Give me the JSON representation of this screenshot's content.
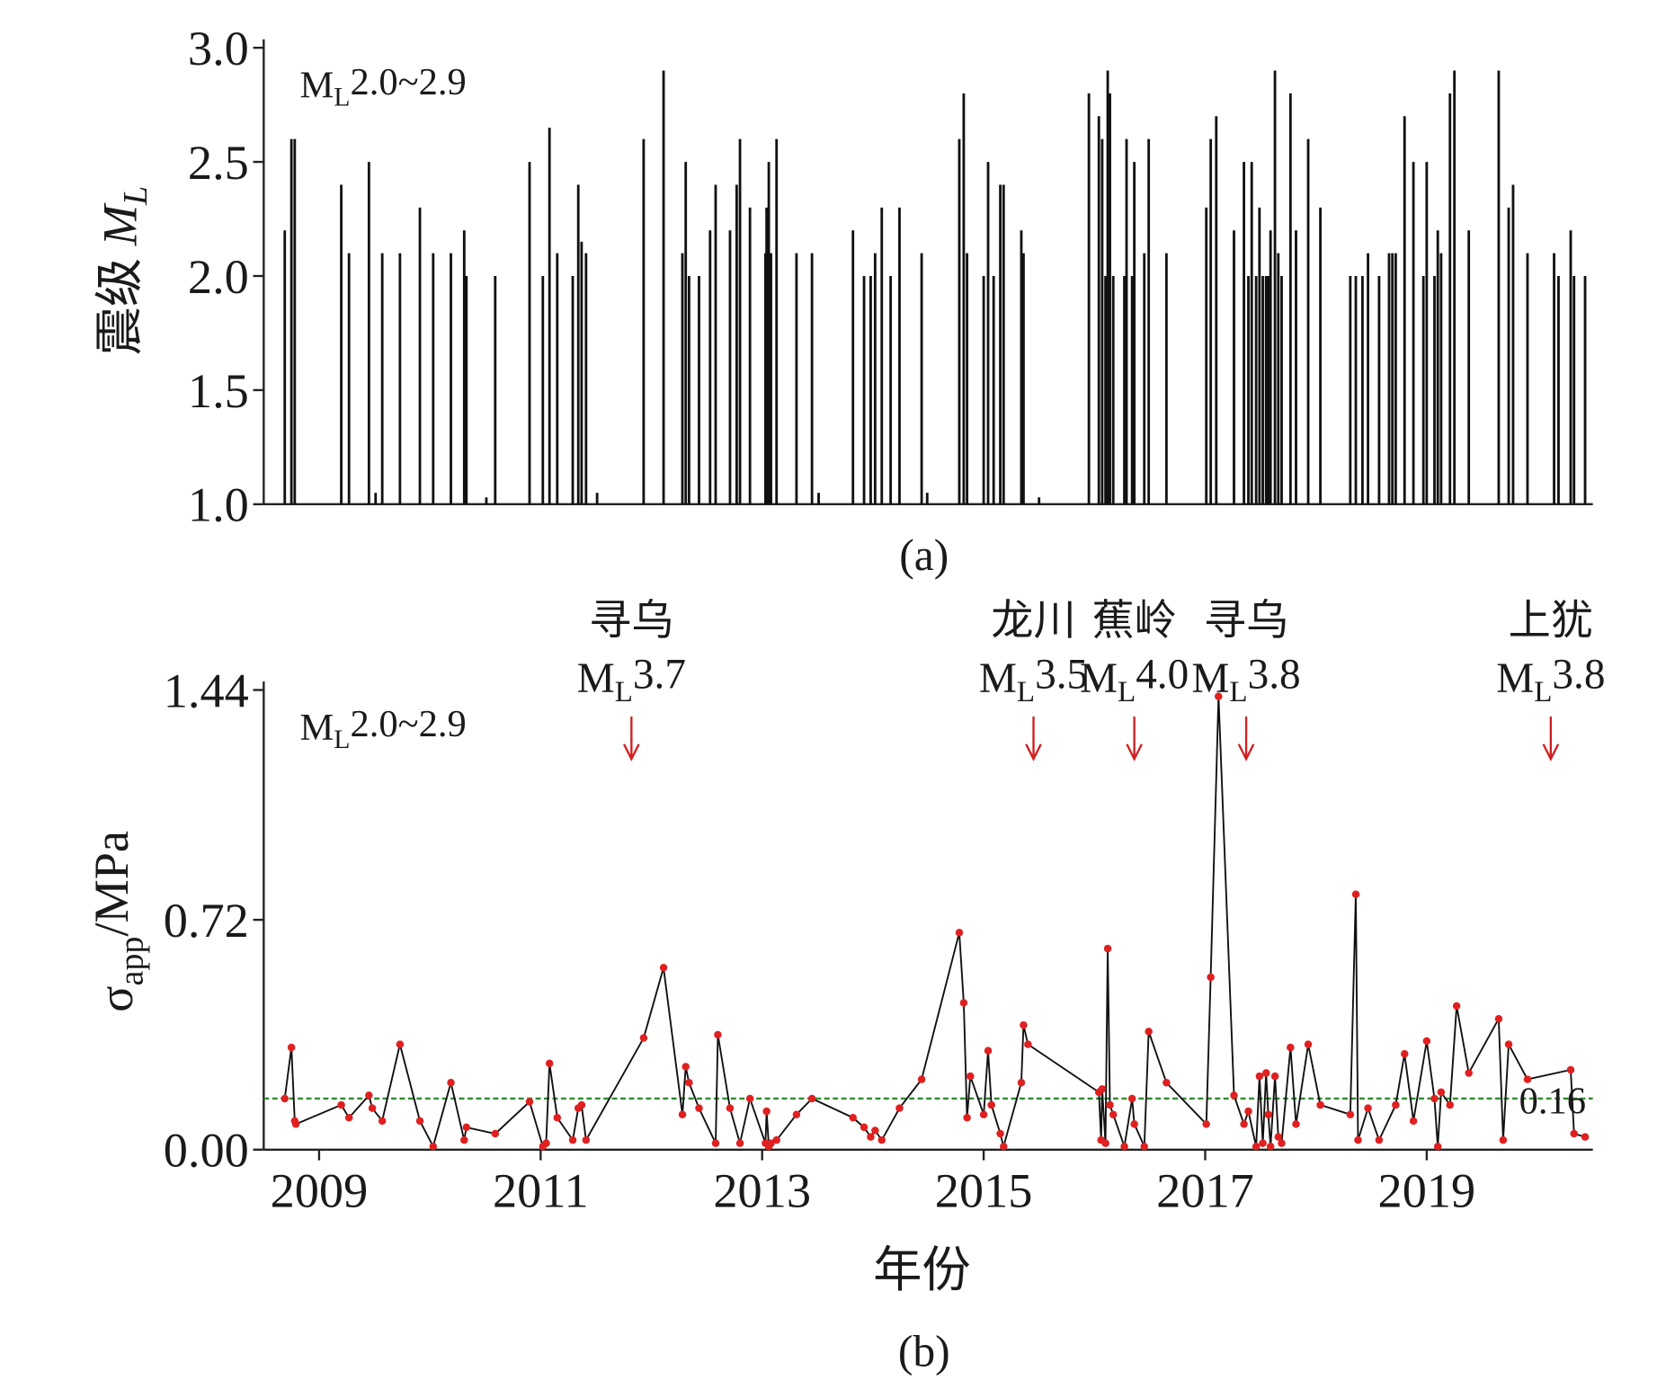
{
  "chart_data": [
    {
      "type": "bar",
      "annotation_text": [
        {
          "text": "M"
        },
        {
          "text": "L",
          "sub": true
        },
        {
          "text": "2.0~2.9"
        }
      ],
      "ylabel": [
        {
          "text": "震级 "
        },
        {
          "text": "M",
          "italic": true
        },
        {
          "text": "L",
          "sub": true,
          "italic": true
        }
      ],
      "panel_label": "(a)",
      "color": "#111111",
      "xlim": [
        2008.5,
        2020.5
      ],
      "ylim": [
        1.0,
        3.0
      ],
      "yticks": [
        {
          "value": 1.0,
          "label": "1.0"
        },
        {
          "value": 1.5,
          "label": "1.5"
        },
        {
          "value": 2.0,
          "label": "2.0"
        },
        {
          "value": 2.5,
          "label": "2.5"
        },
        {
          "value": 3.0,
          "label": "3.0"
        }
      ],
      "x": [
        2008.69,
        2008.75,
        2008.78,
        2009.2,
        2009.27,
        2009.45,
        2009.51,
        2009.57,
        2009.73,
        2009.91,
        2010.03,
        2010.19,
        2010.31,
        2010.33,
        2010.51,
        2010.59,
        2010.9,
        2011.02,
        2011.08,
        2011.15,
        2011.29,
        2011.34,
        2011.37,
        2011.41,
        2011.51,
        2011.93,
        2012.11,
        2012.28,
        2012.31,
        2012.34,
        2012.43,
        2012.53,
        2012.58,
        2012.71,
        2012.77,
        2012.8,
        2012.89,
        2013.03,
        2013.04,
        2013.06,
        2013.08,
        2013.13,
        2013.31,
        2013.45,
        2013.51,
        2013.82,
        2013.92,
        2013.98,
        2014.02,
        2014.08,
        2014.16,
        2014.24,
        2014.44,
        2014.49,
        2014.78,
        2014.82,
        2014.85,
        2015.0,
        2015.04,
        2015.09,
        2015.15,
        2015.18,
        2015.34,
        2015.36,
        2015.5,
        2015.95,
        2016.04,
        2016.07,
        2016.1,
        2016.12,
        2016.14,
        2016.17,
        2016.27,
        2016.29,
        2016.34,
        2016.36,
        2016.45,
        2016.49,
        2016.65,
        2017.01,
        2017.05,
        2017.1,
        2017.26,
        2017.35,
        2017.39,
        2017.42,
        2017.46,
        2017.49,
        2017.52,
        2017.55,
        2017.57,
        2017.59,
        2017.63,
        2017.66,
        2017.69,
        2017.77,
        2017.82,
        2017.93,
        2018.04,
        2018.31,
        2018.36,
        2018.42,
        2018.47,
        2018.57,
        2018.66,
        2018.69,
        2018.72,
        2018.8,
        2018.88,
        2018.97,
        2019.0,
        2019.07,
        2019.1,
        2019.13,
        2019.21,
        2019.25,
        2019.38,
        2019.65,
        2019.74,
        2019.78,
        2019.91,
        2020.15,
        2020.19,
        2020.3,
        2020.33,
        2020.43
      ],
      "values": [
        2.2,
        2.6,
        2.6,
        2.4,
        2.1,
        2.5,
        1.05,
        2.1,
        2.1,
        2.3,
        2.1,
        2.1,
        2.2,
        2.0,
        1.03,
        2.0,
        2.5,
        2.0,
        2.65,
        2.1,
        2.0,
        2.4,
        2.15,
        2.1,
        1.05,
        2.6,
        2.9,
        2.1,
        2.5,
        2.0,
        2.0,
        2.2,
        2.4,
        2.2,
        2.4,
        2.6,
        2.3,
        2.1,
        2.3,
        2.5,
        2.1,
        2.6,
        2.1,
        2.1,
        1.05,
        2.2,
        2.0,
        2.0,
        2.1,
        2.3,
        2.0,
        2.3,
        2.1,
        1.05,
        2.6,
        2.8,
        2.1,
        2.0,
        2.5,
        2.0,
        2.4,
        2.4,
        2.2,
        2.1,
        1.03,
        2.8,
        2.7,
        2.6,
        2.0,
        2.9,
        2.8,
        2.0,
        2.0,
        2.6,
        2.0,
        2.5,
        2.1,
        2.6,
        2.1,
        2.3,
        2.6,
        2.7,
        2.2,
        2.5,
        2.0,
        2.5,
        2.0,
        2.3,
        2.0,
        2.0,
        2.0,
        2.2,
        2.9,
        2.1,
        2.0,
        2.8,
        2.2,
        2.6,
        2.3,
        2.0,
        2.0,
        2.0,
        2.1,
        2.0,
        2.1,
        2.1,
        2.1,
        2.7,
        2.5,
        2.0,
        2.5,
        2.0,
        2.2,
        2.1,
        2.8,
        2.9,
        2.2,
        2.9,
        2.3,
        2.4,
        2.1,
        2.1,
        2.0,
        2.2,
        2.0,
        2.0
      ]
    },
    {
      "type": "line",
      "annotation_text": [
        {
          "text": "M"
        },
        {
          "text": "L",
          "sub": true
        },
        {
          "text": "2.0~2.9"
        }
      ],
      "ylabel": [
        {
          "text": "σ"
        },
        {
          "text": "app",
          "sub": true
        },
        {
          "text": "/MPa"
        }
      ],
      "xlabel": "年份",
      "panel_label": "(b)",
      "color": "#111111",
      "marker_color": "#e02020",
      "xlim": [
        2008.5,
        2020.5
      ],
      "xticks": [
        2009,
        2011,
        2013,
        2015,
        2017,
        2019
      ],
      "ylim": [
        0,
        1.44
      ],
      "yticks": [
        {
          "value": 0,
          "label": "0.00"
        },
        {
          "value": 0.72,
          "label": "0.72"
        },
        {
          "value": 1.44,
          "label": "1.44"
        }
      ],
      "hline": {
        "value": 0.16,
        "label": "0.16",
        "color": "#2e8b2e"
      },
      "events": [
        {
          "x": 2011.82,
          "place": "寻乌",
          "magnitude": [
            {
              "text": "M"
            },
            {
              "text": "L",
              "sub": true
            },
            {
              "text": "3.7"
            }
          ]
        },
        {
          "x": 2015.45,
          "place": "龙川",
          "magnitude": [
            {
              "text": "M"
            },
            {
              "text": "L",
              "sub": true
            },
            {
              "text": "3.5"
            }
          ]
        },
        {
          "x": 2016.36,
          "place": "蕉岭",
          "magnitude": [
            {
              "text": "M"
            },
            {
              "text": "L",
              "sub": true
            },
            {
              "text": "4.0"
            }
          ]
        },
        {
          "x": 2017.37,
          "place": "寻乌",
          "magnitude": [
            {
              "text": "M"
            },
            {
              "text": "L",
              "sub": true
            },
            {
              "text": "3.8"
            }
          ]
        },
        {
          "x": 2020.12,
          "place": "上犹",
          "magnitude": [
            {
              "text": "M"
            },
            {
              "text": "L",
              "sub": true
            },
            {
              "text": "3.8"
            }
          ]
        }
      ],
      "event_color": "#d02020",
      "x": [
        2008.69,
        2008.75,
        2008.78,
        2008.79,
        2009.2,
        2009.27,
        2009.45,
        2009.48,
        2009.57,
        2009.73,
        2009.91,
        2010.03,
        2010.19,
        2010.31,
        2010.33,
        2010.59,
        2010.9,
        2011.02,
        2011.05,
        2011.08,
        2011.15,
        2011.29,
        2011.34,
        2011.37,
        2011.41,
        2011.93,
        2012.11,
        2012.28,
        2012.31,
        2012.34,
        2012.43,
        2012.58,
        2012.6,
        2012.71,
        2012.8,
        2012.89,
        2013.03,
        2013.04,
        2013.06,
        2013.08,
        2013.13,
        2013.31,
        2013.45,
        2013.82,
        2013.92,
        2013.98,
        2014.02,
        2014.08,
        2014.24,
        2014.44,
        2014.78,
        2014.82,
        2014.85,
        2014.88,
        2015.0,
        2015.04,
        2015.07,
        2015.15,
        2015.18,
        2015.34,
        2015.36,
        2015.4,
        2016.04,
        2016.06,
        2016.07,
        2016.1,
        2016.12,
        2016.14,
        2016.17,
        2016.27,
        2016.34,
        2016.36,
        2016.45,
        2016.49,
        2016.65,
        2017.01,
        2017.05,
        2017.12,
        2017.26,
        2017.35,
        2017.39,
        2017.46,
        2017.49,
        2017.52,
        2017.55,
        2017.57,
        2017.59,
        2017.63,
        2017.66,
        2017.69,
        2017.77,
        2017.82,
        2017.93,
        2018.04,
        2018.31,
        2018.36,
        2018.38,
        2018.47,
        2018.57,
        2018.72,
        2018.8,
        2018.88,
        2019.0,
        2019.07,
        2019.1,
        2019.13,
        2019.21,
        2019.27,
        2019.38,
        2019.65,
        2019.69,
        2019.74,
        2019.91,
        2020.3,
        2020.33,
        2020.43
      ],
      "values": [
        0.16,
        0.32,
        0.09,
        0.08,
        0.14,
        0.1,
        0.17,
        0.13,
        0.09,
        0.33,
        0.09,
        0.01,
        0.21,
        0.03,
        0.07,
        0.05,
        0.15,
        0.01,
        0.02,
        0.27,
        0.1,
        0.03,
        0.13,
        0.14,
        0.03,
        0.35,
        0.57,
        0.11,
        0.26,
        0.21,
        0.13,
        0.02,
        0.36,
        0.13,
        0.02,
        0.16,
        0.02,
        0.12,
        0.01,
        0.02,
        0.03,
        0.11,
        0.16,
        0.1,
        0.07,
        0.04,
        0.06,
        0.03,
        0.13,
        0.22,
        0.68,
        0.46,
        0.1,
        0.23,
        0.11,
        0.31,
        0.14,
        0.05,
        0.01,
        0.21,
        0.39,
        0.33,
        0.18,
        0.03,
        0.19,
        0.02,
        0.63,
        0.14,
        0.11,
        0.01,
        0.16,
        0.08,
        0.01,
        0.37,
        0.21,
        0.08,
        0.54,
        1.42,
        0.17,
        0.08,
        0.12,
        0.01,
        0.23,
        0.02,
        0.24,
        0.11,
        0.01,
        0.23,
        0.04,
        0.02,
        0.32,
        0.08,
        0.33,
        0.14,
        0.11,
        0.8,
        0.03,
        0.13,
        0.03,
        0.14,
        0.3,
        0.09,
        0.34,
        0.16,
        0.01,
        0.18,
        0.14,
        0.45,
        0.24,
        0.41,
        0.03,
        0.33,
        0.22,
        0.25,
        0.05,
        0.04
      ]
    }
  ]
}
